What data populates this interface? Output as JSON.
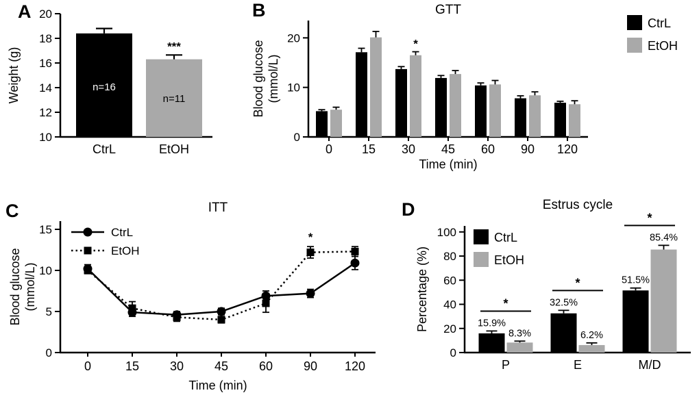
{
  "figure": {
    "background": "#ffffff",
    "series_colors": {
      "CtrL": "#000000",
      "EtOH": "#a9a9a9"
    }
  },
  "chart_data": [
    {
      "panel": "A",
      "type": "bar",
      "ylabel": "Weight (g)",
      "ylim": [
        10,
        20
      ],
      "yticks": [
        10,
        12,
        14,
        16,
        18,
        20
      ],
      "categories": [
        "CtrL",
        "EtOH"
      ],
      "values": [
        18.4,
        16.3
      ],
      "errors": [
        0.4,
        0.35
      ],
      "bar_labels": [
        "n=16",
        "n=11"
      ],
      "bar_label_colors": [
        "#ffffff",
        "#000000"
      ],
      "significance": [
        null,
        "***"
      ]
    },
    {
      "panel": "B",
      "type": "grouped_bar",
      "title": "GTT",
      "xlabel": "Time (min)",
      "ylabel_lines": [
        "Blood glucose",
        "(mmol/L)"
      ],
      "ylim": [
        0,
        23.5
      ],
      "yticks": [
        0,
        10,
        20
      ],
      "categories": [
        "0",
        "15",
        "30",
        "45",
        "60",
        "90",
        "120"
      ],
      "series": [
        {
          "name": "CtrL",
          "values": [
            5.2,
            17.1,
            13.7,
            11.9,
            10.4,
            7.8,
            6.9
          ],
          "errors": [
            0.3,
            0.8,
            0.5,
            0.5,
            0.5,
            0.5,
            0.3
          ]
        },
        {
          "name": "EtOH",
          "values": [
            5.5,
            20.1,
            16.5,
            12.7,
            10.6,
            8.4,
            6.6
          ],
          "errors": [
            0.5,
            1.2,
            0.7,
            0.7,
            0.8,
            0.7,
            0.7
          ]
        }
      ],
      "significance": [
        {
          "category_index": 2,
          "series_index": 1,
          "label": "*"
        }
      ],
      "legend": {
        "position": "outside-right",
        "entries": [
          "CtrL",
          "EtOH"
        ]
      }
    },
    {
      "panel": "C",
      "type": "line",
      "title": "ITT",
      "xlabel": "Time (min)",
      "ylabel_lines": [
        "Blood glucose",
        "(mmol/L)"
      ],
      "ylim": [
        0,
        16
      ],
      "yticks": [
        0,
        5,
        10,
        15
      ],
      "x": [
        0,
        15,
        30,
        45,
        60,
        90,
        120
      ],
      "series": [
        {
          "name": "CtrL",
          "marker": "circle",
          "line_style": "solid",
          "values": [
            10.2,
            4.9,
            4.6,
            5.0,
            6.9,
            7.2,
            10.9
          ],
          "errors": [
            0.5,
            0.5,
            0.4,
            0.4,
            0.6,
            0.5,
            0.8
          ]
        },
        {
          "name": "EtOH",
          "marker": "square",
          "line_style": "dotted",
          "values": [
            10.0,
            5.4,
            4.3,
            4.0,
            6.0,
            12.2,
            12.3
          ],
          "errors": [
            0.4,
            0.8,
            0.5,
            0.4,
            1.1,
            0.7,
            0.6
          ]
        }
      ],
      "significance": [
        {
          "x_index": 5,
          "series_index": 1,
          "label": "*"
        }
      ],
      "legend": {
        "position": "inside-top-left",
        "entries": [
          "CtrL",
          "EtOH"
        ]
      }
    },
    {
      "panel": "D",
      "type": "grouped_bar",
      "title": "Estrus cycle",
      "xlabel": "",
      "ylabel": "Percentage (%)",
      "ylim": [
        0,
        105
      ],
      "yticks": [
        0,
        20,
        40,
        60,
        80,
        100
      ],
      "categories": [
        "P",
        "E",
        "M/D"
      ],
      "series": [
        {
          "name": "CtrL",
          "values": [
            15.9,
            32.5,
            51.5
          ],
          "errors": [
            2.0,
            2.5,
            2.0
          ]
        },
        {
          "name": "EtOH",
          "values": [
            8.3,
            6.2,
            85.4
          ],
          "errors": [
            1.2,
            1.8,
            3.5
          ]
        }
      ],
      "value_labels": [
        [
          "15.9%",
          "32.5%",
          "51.5%"
        ],
        [
          "8.3%",
          "6.2%",
          "85.4%"
        ]
      ],
      "group_significance": [
        {
          "category_index": 0,
          "label": "*"
        },
        {
          "category_index": 1,
          "label": "*"
        },
        {
          "category_index": 2,
          "label": "*"
        }
      ],
      "legend": {
        "position": "inside-top-left",
        "entries": [
          "CtrL",
          "EtOH"
        ]
      }
    }
  ]
}
